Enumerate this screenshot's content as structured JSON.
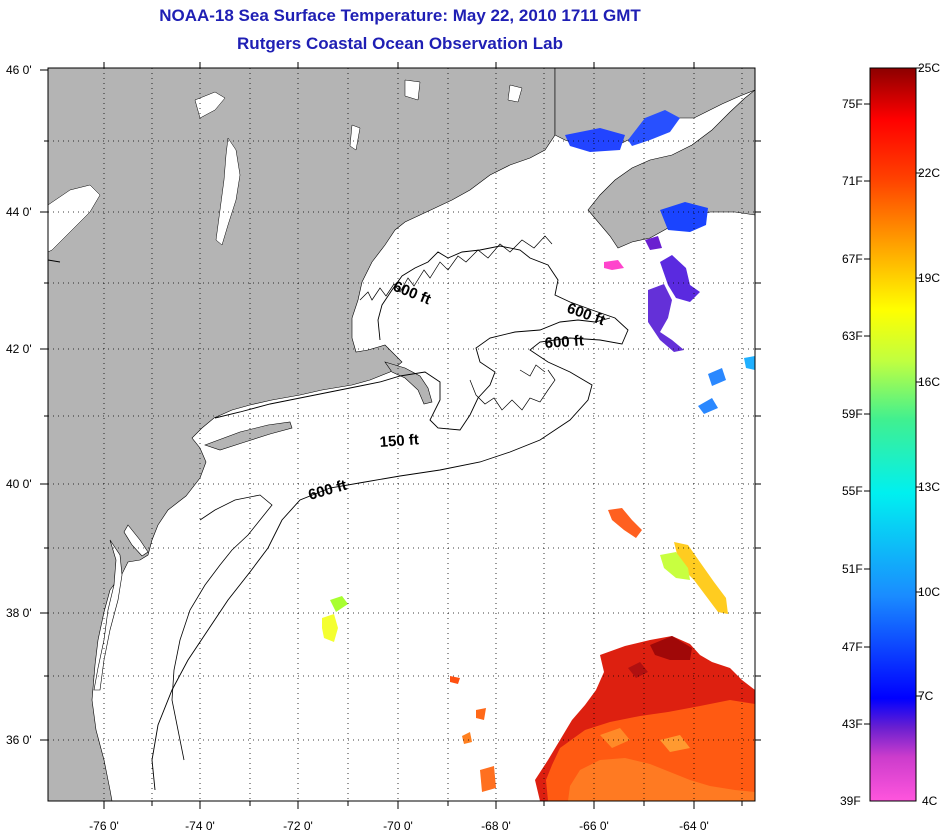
{
  "title": {
    "line1": "NOAA-18 Sea Surface Temperature:  May 22, 2010 1711 GMT",
    "line2": "Rutgers Coastal Ocean Observation Lab"
  },
  "axes": {
    "lat_labels": [
      "46 0'",
      "44 0'",
      "42 0'",
      "40 0'",
      "38 0'",
      "36 0'"
    ],
    "lon_labels": [
      "-76 0'",
      "-74 0'",
      "-72 0'",
      "-70 0'",
      "-68 0'",
      "-66 0'",
      "-64 0'"
    ]
  },
  "contours": {
    "labels": [
      "600 ft",
      "600 ft",
      "600 ft",
      "150 ft",
      "600 ft"
    ]
  },
  "colorbar": {
    "fahrenheit": [
      "75F",
      "71F",
      "67F",
      "63F",
      "59F",
      "55F",
      "51F",
      "47F",
      "43F",
      "39F"
    ],
    "celsius": [
      "25C",
      "22C",
      "19C",
      "16C",
      "13C",
      "10C",
      "7C",
      "4C"
    ]
  },
  "colors": {
    "title": "#1f1fb4",
    "land": "#b4b4b4",
    "ocean": "#ffffff"
  }
}
